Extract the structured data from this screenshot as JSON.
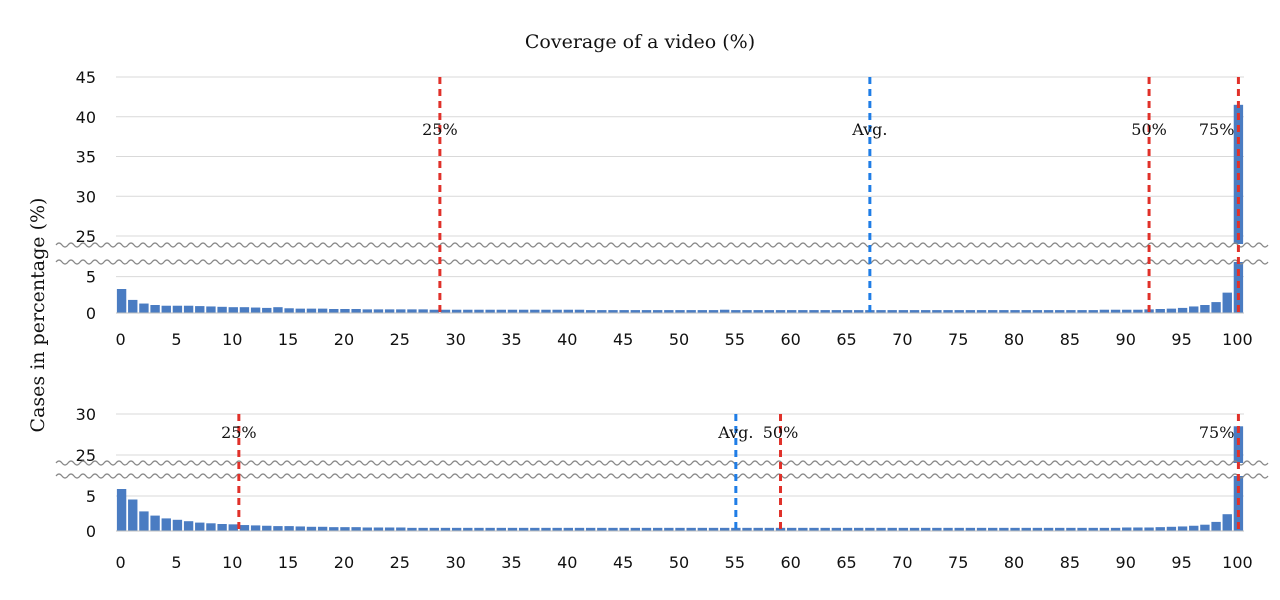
{
  "chart_data": [
    {
      "type": "bar",
      "title": "Coverage of a video (%)",
      "ylabel": "Cases in percentage (%)",
      "x": [
        0,
        1,
        2,
        3,
        4,
        5,
        6,
        7,
        8,
        9,
        10,
        11,
        12,
        13,
        14,
        15,
        16,
        17,
        18,
        19,
        20,
        21,
        22,
        23,
        24,
        25,
        26,
        27,
        28,
        29,
        30,
        31,
        32,
        33,
        34,
        35,
        36,
        37,
        38,
        39,
        40,
        41,
        42,
        43,
        44,
        45,
        46,
        47,
        48,
        49,
        50,
        51,
        52,
        53,
        54,
        55,
        56,
        57,
        58,
        59,
        60,
        61,
        62,
        63,
        64,
        65,
        66,
        67,
        68,
        69,
        70,
        71,
        72,
        73,
        74,
        75,
        76,
        77,
        78,
        79,
        80,
        81,
        82,
        83,
        84,
        85,
        86,
        87,
        88,
        89,
        90,
        91,
        92,
        93,
        94,
        95,
        96,
        97,
        98,
        99,
        100
      ],
      "values": [
        3.3,
        1.8,
        1.3,
        1.1,
        1.0,
        1.0,
        1.0,
        0.95,
        0.9,
        0.85,
        0.8,
        0.8,
        0.75,
        0.7,
        0.8,
        0.65,
        0.6,
        0.6,
        0.6,
        0.55,
        0.55,
        0.55,
        0.5,
        0.5,
        0.5,
        0.5,
        0.5,
        0.5,
        0.45,
        0.45,
        0.45,
        0.45,
        0.45,
        0.45,
        0.45,
        0.45,
        0.45,
        0.45,
        0.45,
        0.45,
        0.45,
        0.45,
        0.4,
        0.4,
        0.4,
        0.4,
        0.4,
        0.4,
        0.4,
        0.4,
        0.4,
        0.4,
        0.4,
        0.4,
        0.45,
        0.4,
        0.4,
        0.4,
        0.4,
        0.4,
        0.4,
        0.4,
        0.4,
        0.4,
        0.4,
        0.4,
        0.4,
        0.4,
        0.4,
        0.4,
        0.4,
        0.4,
        0.4,
        0.4,
        0.4,
        0.4,
        0.4,
        0.4,
        0.4,
        0.4,
        0.4,
        0.4,
        0.4,
        0.4,
        0.4,
        0.4,
        0.4,
        0.4,
        0.45,
        0.45,
        0.45,
        0.45,
        0.5,
        0.55,
        0.6,
        0.7,
        0.9,
        1.1,
        1.5,
        2.8,
        41.5
      ],
      "ylim": [
        0,
        45
      ],
      "y_break": [
        5.5,
        25
      ],
      "yticks": [
        0,
        5,
        25,
        30,
        35,
        40,
        45
      ],
      "xticks": [
        0,
        5,
        10,
        15,
        20,
        25,
        30,
        35,
        40,
        45,
        50,
        55,
        60,
        65,
        70,
        75,
        80,
        85,
        90,
        95,
        100
      ],
      "markers": [
        {
          "label": "25%",
          "x": 28.5,
          "color": "#e0312a"
        },
        {
          "label": "Avg.",
          "x": 67,
          "color": "#1f7de6"
        },
        {
          "label": "50%",
          "x": 92,
          "color": "#e0312a"
        },
        {
          "label": "75%",
          "x": 100,
          "color": "#e0312a"
        }
      ],
      "bar_color": "#4a7cc2",
      "grid": true
    },
    {
      "type": "bar",
      "x": [
        0,
        1,
        2,
        3,
        4,
        5,
        6,
        7,
        8,
        9,
        10,
        11,
        12,
        13,
        14,
        15,
        16,
        17,
        18,
        19,
        20,
        21,
        22,
        23,
        24,
        25,
        26,
        27,
        28,
        29,
        30,
        31,
        32,
        33,
        34,
        35,
        36,
        37,
        38,
        39,
        40,
        41,
        42,
        43,
        44,
        45,
        46,
        47,
        48,
        49,
        50,
        51,
        52,
        53,
        54,
        55,
        56,
        57,
        58,
        59,
        60,
        61,
        62,
        63,
        64,
        65,
        66,
        67,
        68,
        69,
        70,
        71,
        72,
        73,
        74,
        75,
        76,
        77,
        78,
        79,
        80,
        81,
        82,
        83,
        84,
        85,
        86,
        87,
        88,
        89,
        90,
        91,
        92,
        93,
        94,
        95,
        96,
        97,
        98,
        99,
        100
      ],
      "values": [
        6.0,
        4.5,
        2.8,
        2.2,
        1.8,
        1.6,
        1.4,
        1.2,
        1.1,
        1.0,
        0.95,
        0.85,
        0.8,
        0.75,
        0.7,
        0.7,
        0.65,
        0.6,
        0.6,
        0.55,
        0.55,
        0.55,
        0.5,
        0.5,
        0.5,
        0.5,
        0.45,
        0.45,
        0.45,
        0.45,
        0.45,
        0.45,
        0.45,
        0.45,
        0.45,
        0.45,
        0.45,
        0.45,
        0.45,
        0.45,
        0.45,
        0.45,
        0.45,
        0.45,
        0.45,
        0.45,
        0.45,
        0.45,
        0.45,
        0.45,
        0.45,
        0.45,
        0.45,
        0.45,
        0.45,
        0.45,
        0.45,
        0.45,
        0.45,
        0.45,
        0.45,
        0.45,
        0.45,
        0.45,
        0.45,
        0.45,
        0.45,
        0.45,
        0.45,
        0.45,
        0.45,
        0.45,
        0.45,
        0.45,
        0.45,
        0.45,
        0.45,
        0.45,
        0.45,
        0.45,
        0.45,
        0.45,
        0.45,
        0.45,
        0.45,
        0.45,
        0.45,
        0.45,
        0.45,
        0.45,
        0.5,
        0.5,
        0.5,
        0.55,
        0.6,
        0.65,
        0.75,
        0.9,
        1.3,
        2.4,
        28.5
      ],
      "ylim": [
        0,
        30
      ],
      "y_break": [
        7,
        25
      ],
      "yticks": [
        0,
        5,
        25,
        30
      ],
      "xticks": [
        0,
        5,
        10,
        15,
        20,
        25,
        30,
        35,
        40,
        45,
        50,
        55,
        60,
        65,
        70,
        75,
        80,
        85,
        90,
        95,
        100
      ],
      "markers": [
        {
          "label": "25%",
          "x": 10.5,
          "color": "#e0312a"
        },
        {
          "label": "Avg.",
          "x": 55,
          "color": "#1f7de6"
        },
        {
          "label": "50%",
          "x": 59,
          "color": "#e0312a"
        },
        {
          "label": "75%",
          "x": 100,
          "color": "#e0312a"
        }
      ],
      "bar_color": "#4a7cc2",
      "grid": true
    }
  ]
}
